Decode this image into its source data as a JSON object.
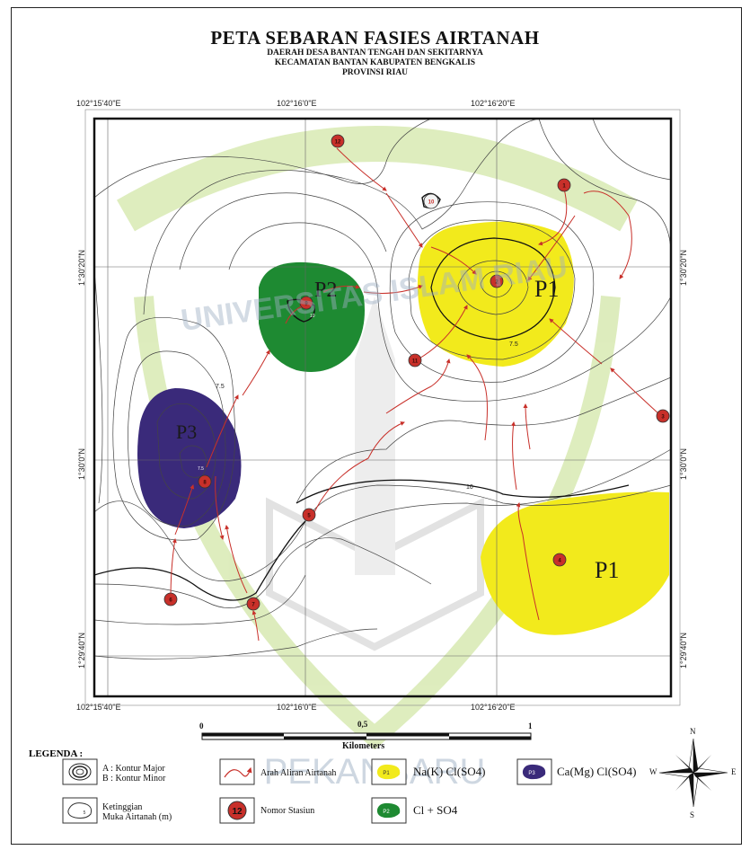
{
  "header": {
    "title": "PETA SEBARAN FASIES AIRTANAH",
    "subtitle_1": "DAERAH DESA BANTAN TENGAH DAN SEKITARNYA",
    "subtitle_2": "KECAMATAN BANTAN KABUPATEN BENGKALIS",
    "subtitle_3": "PROVINSI RIAU"
  },
  "map": {
    "coords_top": [
      "102°15'40\"E",
      "102°16'0\"E",
      "102°16'20\"E"
    ],
    "coords_bottom": [
      "102°15'40\"E",
      "102°16'0\"E",
      "102°16'20\"E"
    ],
    "coords_left": [
      "1°30'20\"N",
      "1°30'0\"N",
      "1°29'40\"N"
    ],
    "coords_right": [
      "1°30'20\"N",
      "1°30'0\"N",
      "1°29'40\"N"
    ],
    "facies_labels": {
      "p1_upper": "P1",
      "p1_lower": "P1",
      "p2": "P2",
      "p3": "P3"
    },
    "contour_labels": {
      "c75": "7.5",
      "c10": "10",
      "c_p1": "7.5",
      "c_p2": "10",
      "c_p3": "7.5"
    },
    "stations": [
      "1",
      "2",
      "3",
      "4",
      "5",
      "6",
      "7",
      "8",
      "9",
      "10",
      "11",
      "12"
    ],
    "watermark": {
      "upper": "UNIVERSITAS ISLAM RIAU",
      "lower": "PEKANBARU"
    },
    "colors": {
      "p1": "#f2ea1c",
      "p2": "#1e8a32",
      "p3": "#3a2a7a",
      "station": "#c8302a",
      "flow": "#c8302a",
      "watermark": "#a8d08a"
    }
  },
  "scale": {
    "start": "0",
    "mid": "0,5",
    "end": "1",
    "unit": "Kilometers"
  },
  "legend": {
    "title": "LEGENDA :",
    "contour_a": "A : Kontur Major",
    "contour_b": "B : Kontur Minor",
    "elevation_1": "Ketinggian",
    "elevation_2": "Muka Airtanah (m)",
    "flow": "Arah Aliran Airtanah",
    "station": "Nomor Stasiun",
    "station_sample": "12",
    "p1_box": "P1",
    "p1_text": "Na(K) Cl(SO4)",
    "p2_box": "P2",
    "p2_text": "Cl + SO4",
    "p3_box": "P3",
    "p3_text": "Ca(Mg) Cl(SO4)",
    "elev_sample": "5"
  },
  "compass": {
    "n": "N",
    "s": "S",
    "e": "E",
    "w": "W"
  }
}
